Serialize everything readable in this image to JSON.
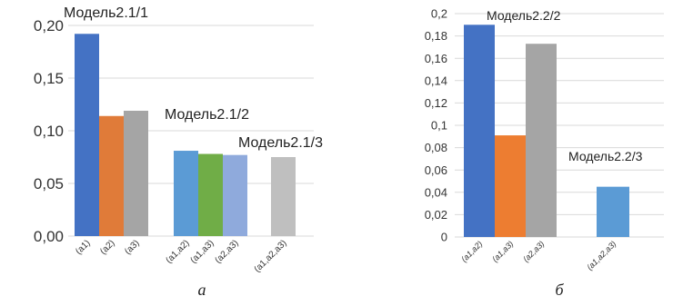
{
  "chart_data": [
    {
      "type": "bar",
      "ylim": [
        0,
        0.2
      ],
      "yticks": [
        "0,00",
        "0,05",
        "0,10",
        "0,15",
        "0,20"
      ],
      "grid": true,
      "groups": [
        {
          "label": "Модель2.1/1",
          "categories": [
            "(a1)",
            "(a2)",
            "(a3)"
          ],
          "values": [
            0.192,
            0.114,
            0.119
          ],
          "colors": [
            "#4472c4",
            "#e07b39",
            "#a5a5a5"
          ]
        },
        {
          "label": "Модель2.1/2",
          "categories": [
            "(a1,a2)",
            "(a1,a3)",
            "(a2,a3)"
          ],
          "values": [
            0.081,
            0.078,
            0.077
          ],
          "colors": [
            "#5b9bd5",
            "#70ad47",
            "#8faadc"
          ]
        },
        {
          "label": "Модель2.1/3",
          "categories": [
            "(a1,a2,a3)"
          ],
          "values": [
            0.075
          ],
          "colors": [
            "#bfbfbf"
          ]
        }
      ],
      "caption": "а"
    },
    {
      "type": "bar",
      "ylim": [
        0,
        0.2
      ],
      "yticks": [
        "0",
        "0,02",
        "0,04",
        "0,06",
        "0,08",
        "0,1",
        "0,12",
        "0,14",
        "0,16",
        "0,18",
        "0,2"
      ],
      "grid": true,
      "groups": [
        {
          "label": "Модель2.2/2",
          "categories": [
            "(a1,a2)",
            "(a1,a3)",
            "(a2,a3)"
          ],
          "values": [
            0.19,
            0.091,
            0.173
          ],
          "colors": [
            "#4472c4",
            "#ed7d31",
            "#a5a5a5"
          ]
        },
        {
          "label": "Модель2.2/3",
          "categories": [
            "(a1,a2,a3)"
          ],
          "values": [
            0.045
          ],
          "colors": [
            "#5b9bd5"
          ]
        }
      ],
      "caption": "б"
    }
  ]
}
